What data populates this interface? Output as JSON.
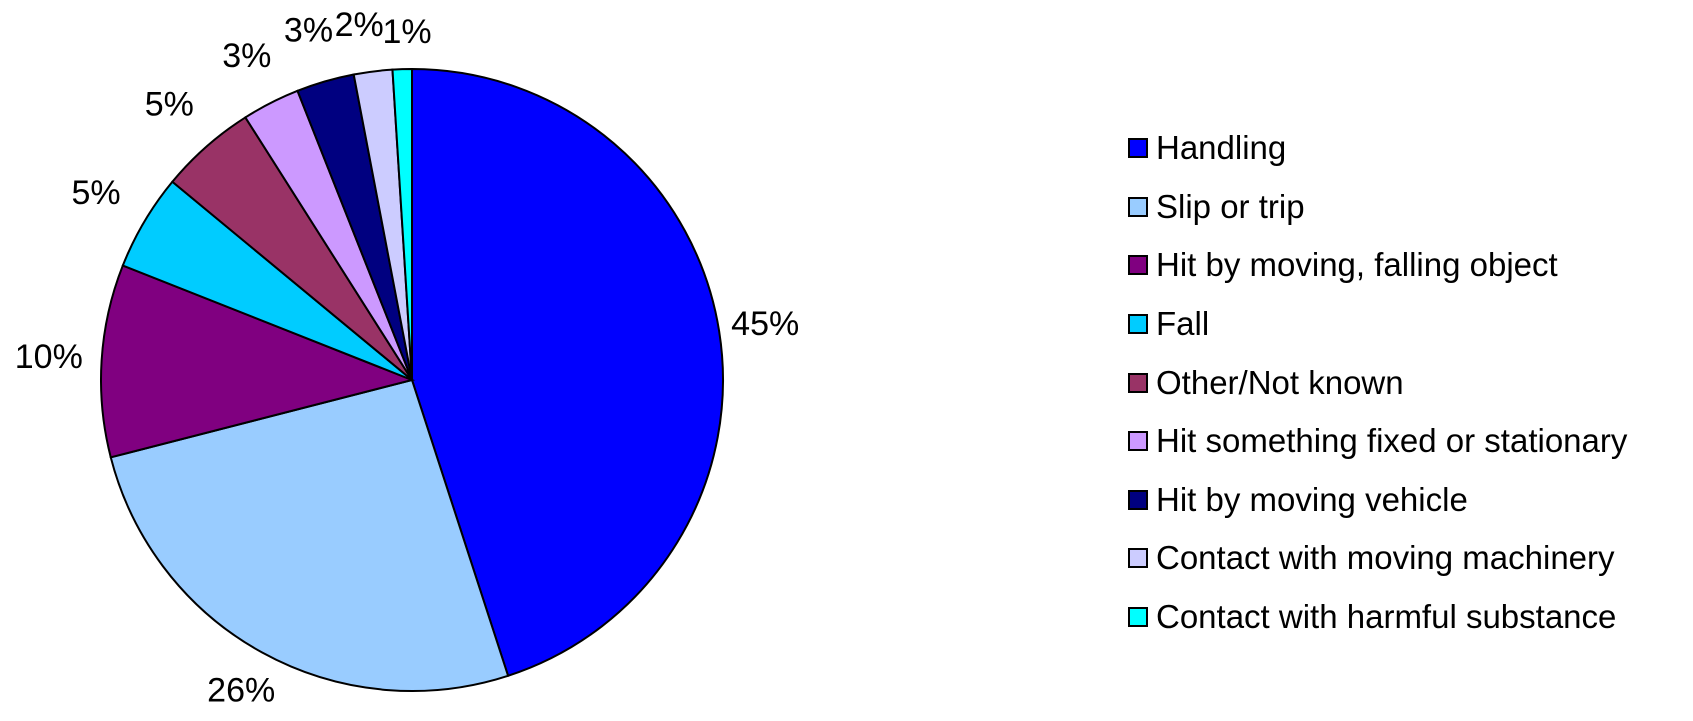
{
  "chart_data": {
    "type": "pie",
    "title": "",
    "legend_position": "right",
    "slices": [
      {
        "name": "Handling",
        "value": 45,
        "label": "45%",
        "color": "#0000FF"
      },
      {
        "name": "Slip or trip",
        "value": 26,
        "label": "26%",
        "color": "#99CCFF"
      },
      {
        "name": "Hit by moving, falling object",
        "value": 10,
        "label": "10%",
        "color": "#800080"
      },
      {
        "name": "Fall",
        "value": 5,
        "label": "5%",
        "color": "#00CCFF"
      },
      {
        "name": "Other/Not known",
        "value": 5,
        "label": "5%",
        "color": "#993366"
      },
      {
        "name": "Hit something fixed or stationary",
        "value": 3,
        "label": "3%",
        "color": "#CC99FF"
      },
      {
        "name": "Hit by moving vehicle",
        "value": 3,
        "label": "3%",
        "color": "#000080"
      },
      {
        "name": "Contact with moving machinery",
        "value": 2,
        "label": "2%",
        "color": "#CCCCFF"
      },
      {
        "name": "Contact with harmful substance",
        "value": 1,
        "label": "1%",
        "color": "#00FFFF"
      }
    ]
  }
}
